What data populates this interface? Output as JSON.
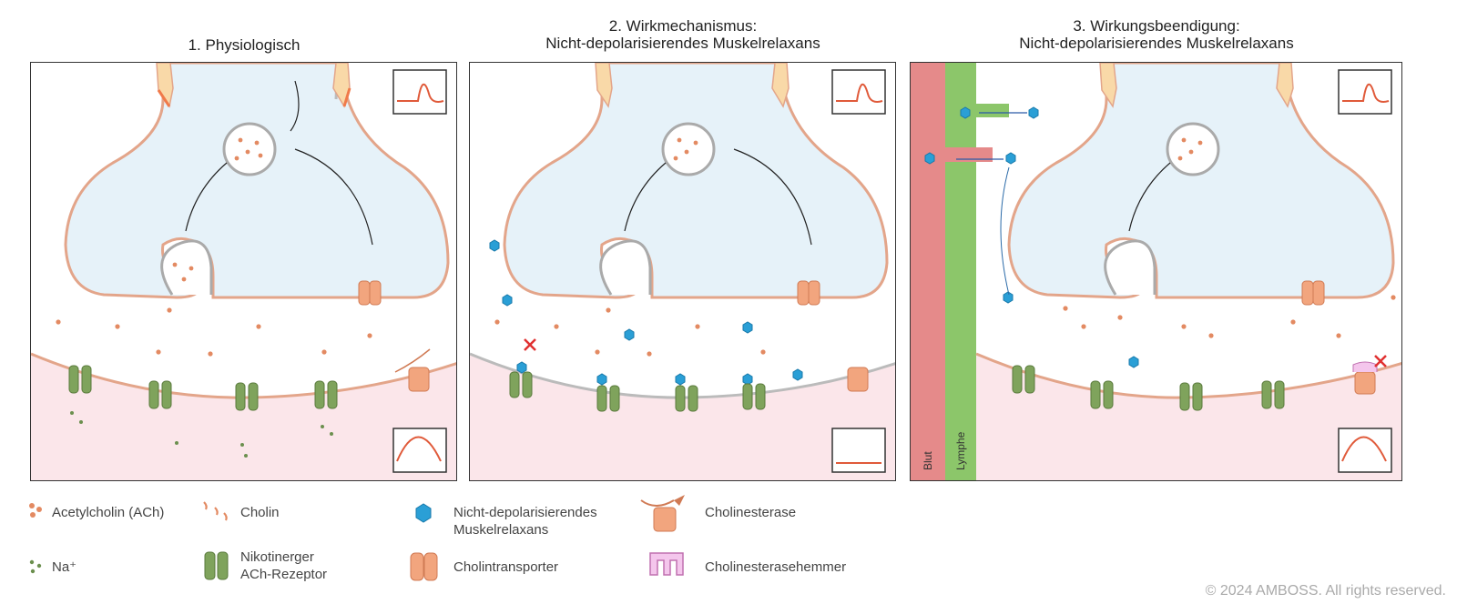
{
  "panels": [
    {
      "title": "1. Physiologisch"
    },
    {
      "title": "2. Wirkmechanismus:\nNicht-depolarisierendes Muskelrelaxans"
    },
    {
      "title": "3. Wirkungsbeendigung:\nNicht-depolarisierendes Muskelrelaxans",
      "side_labels": {
        "blood": "Blut",
        "lymph": "Lymphe"
      }
    }
  ],
  "legend": {
    "ach": "Acetylcholin (ACh)",
    "cholin": "Cholin",
    "nmb": "Nicht-depolarisierendes\nMuskelrelaxans",
    "cholinesterase": "Cholinesterase",
    "na": "Na⁺",
    "receptor": "Nikotinerger\nACh-Rezeptor",
    "transporter": "Cholintransporter",
    "inhibitor": "Cholinesterasehemmer"
  },
  "copyright": "© 2024 AMBOSS. All rights reserved.",
  "colors": {
    "terminal_fill": "#e6f2f9",
    "membrane": "#e3a58a",
    "muscle_fill": "#fbe6ea",
    "ach": "#e38a62",
    "na": "#6b8f4e",
    "receptor": "#7fa35c",
    "nmb": "#2a9fd6",
    "enzyme": "#f2a57e",
    "inhibitor": "#d98bc8",
    "blood": "#e58a8a",
    "lymph": "#8cc66a",
    "inhibit_mark": "#e03030"
  }
}
